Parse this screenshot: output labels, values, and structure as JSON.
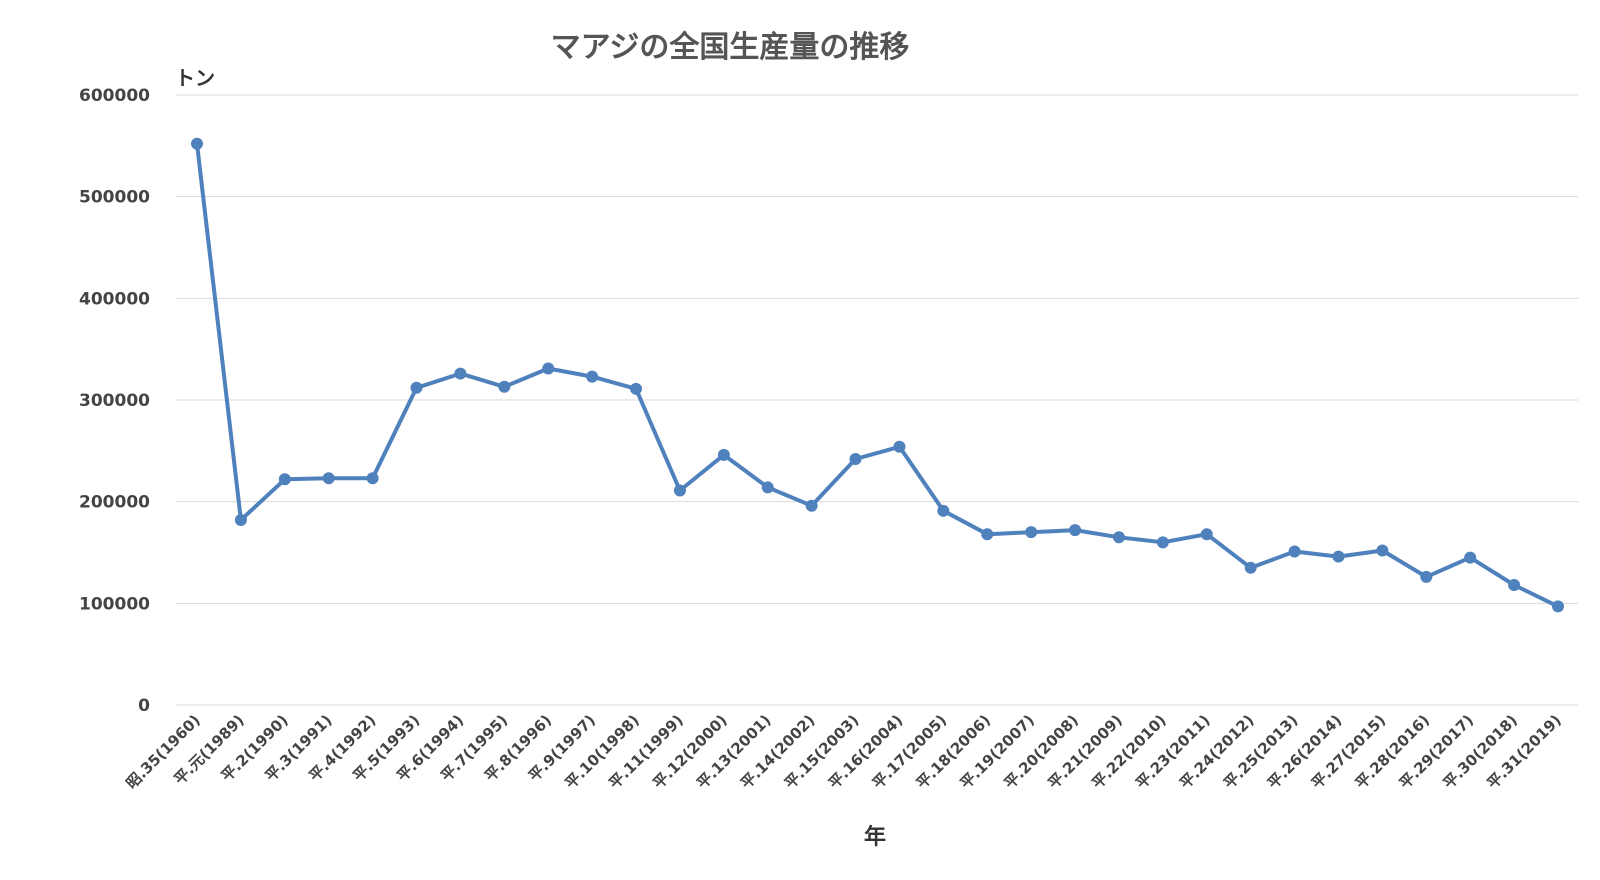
{
  "chart_data": {
    "type": "line",
    "title": "マアジの全国生産量の推移",
    "ylabel": "トン",
    "xlabel": "年",
    "ylim": [
      0,
      600000
    ],
    "yticks": [
      0,
      100000,
      200000,
      300000,
      400000,
      500000,
      600000
    ],
    "ytick_labels": [
      "0",
      "100000",
      "200000",
      "300000",
      "400000",
      "500000",
      "600000"
    ],
    "grid": true,
    "legend": "none",
    "color": "#4f81bd",
    "categories": [
      "昭.35(1960)",
      "平.元(1989)",
      "平.2(1990)",
      "平.3(1991)",
      "平.4(1992)",
      "平.5(1993)",
      "平.6(1994)",
      "平.7(1995)",
      "平.8(1996)",
      "平.9(1997)",
      "平.10(1998)",
      "平.11(1999)",
      "平.12(2000)",
      "平.13(2001)",
      "平.14(2002)",
      "平.15(2003)",
      "平.16(2004)",
      "平.17(2005)",
      "平.18(2006)",
      "平.19(2007)",
      "平.20(2008)",
      "平.21(2009)",
      "平.22(2010)",
      "平.23(2011)",
      "平.24(2012)",
      "平.25(2013)",
      "平.26(2014)",
      "平.27(2015)",
      "平.28(2016)",
      "平.29(2017)",
      "平.30(2018)",
      "平.31(2019)"
    ],
    "series": [
      {
        "values": [
          552000,
          182000,
          222000,
          223000,
          223000,
          312000,
          326000,
          313000,
          331000,
          323000,
          311000,
          211000,
          246000,
          214000,
          196000,
          242000,
          254000,
          191000,
          168000,
          170000,
          172000,
          165000,
          160000,
          168000,
          135000,
          151000,
          146000,
          152000,
          126000,
          145000,
          118000,
          97000
        ]
      }
    ]
  }
}
